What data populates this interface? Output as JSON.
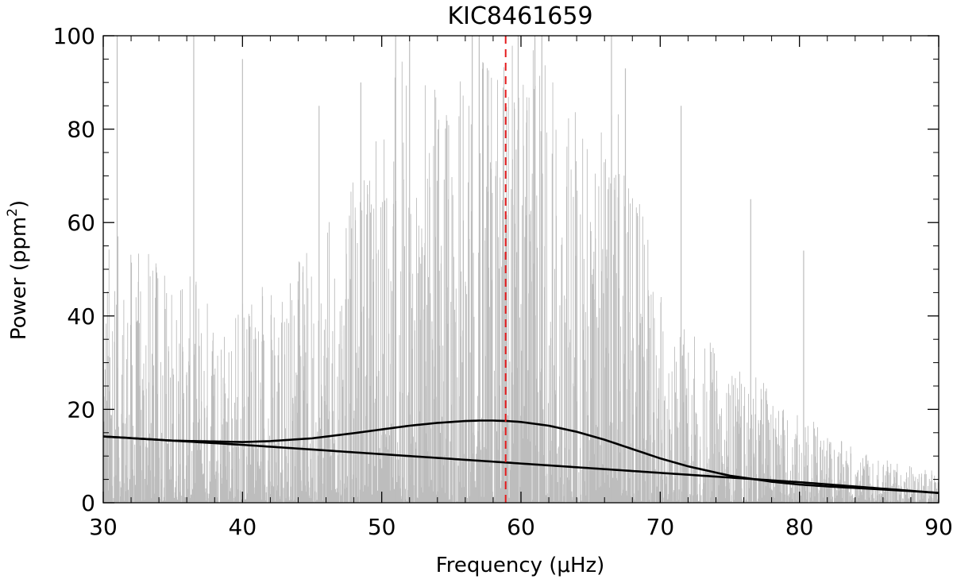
{
  "chart_data": {
    "type": "line",
    "title": "KIC8461659",
    "xlabel": "Frequency (μHz)",
    "ylabel": "Power (ppm²)",
    "ylabel_parts": {
      "text": "Power (ppm",
      "sup": "2",
      "close": ")"
    },
    "xlim": [
      30,
      90
    ],
    "ylim": [
      0,
      100
    ],
    "x_ticks": [
      30,
      40,
      50,
      60,
      70,
      80,
      90
    ],
    "y_ticks": [
      0,
      20,
      40,
      60,
      80,
      100
    ],
    "grid": false,
    "colors": {
      "spectrum": "#bdbdbd",
      "fit": "#000000",
      "numax_marker": "#e41a1c"
    },
    "numax_marker": {
      "x": 58.9,
      "style": "dashed"
    },
    "series": [
      {
        "kind": "power-spectrum-noise",
        "envelope_x": [
          30,
          35,
          40,
          45,
          50,
          51,
          52,
          55,
          57,
          59,
          60,
          62,
          65,
          67,
          70,
          72,
          75,
          78,
          80,
          82,
          85,
          88,
          90
        ],
        "envelope_y": [
          60,
          50,
          45,
          55,
          80,
          100,
          90,
          95,
          100,
          100,
          100,
          100,
          80,
          85,
          45,
          40,
          30,
          25,
          20,
          15,
          10,
          8,
          7
        ],
        "spikes_x": [
          31,
          36.5,
          40,
          45.5,
          48.5,
          51,
          52,
          56.5,
          57,
          59.8,
          61,
          61.5,
          66.5,
          67.5,
          71.5,
          76.5,
          80.3
        ],
        "spikes_y": [
          100,
          100,
          95,
          85,
          90,
          100,
          100,
          100,
          100,
          100,
          100,
          100,
          100,
          93,
          85,
          65,
          54
        ]
      },
      {
        "kind": "background-plus-gaussian",
        "x": [
          30,
          35,
          40,
          42,
          45,
          48,
          50,
          52,
          54,
          56,
          57,
          58,
          59,
          60,
          62,
          64,
          66,
          68,
          70,
          72,
          75,
          78,
          80,
          82,
          85,
          88,
          90
        ],
        "y": [
          14.2,
          13.3,
          13.0,
          13.2,
          13.8,
          14.9,
          15.7,
          16.5,
          17.1,
          17.5,
          17.6,
          17.6,
          17.5,
          17.3,
          16.5,
          15.2,
          13.5,
          11.5,
          9.5,
          7.8,
          5.8,
          4.5,
          3.9,
          3.5,
          3.0,
          2.5,
          2.1
        ]
      },
      {
        "kind": "background",
        "x": [
          30,
          40,
          50,
          60,
          70,
          80,
          90
        ],
        "y": [
          14.2,
          12.4,
          10.4,
          8.4,
          6.4,
          4.4,
          2.1
        ]
      }
    ]
  }
}
